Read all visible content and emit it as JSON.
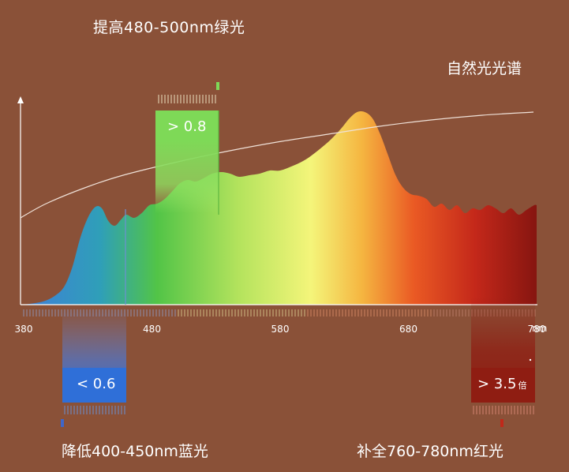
{
  "labels": {
    "top_title": "提高480-500nm绿光",
    "natural_spectrum": "自然光光谱",
    "blue_title": "降低400-450nm蓝光",
    "red_title": "补全760-780nm红光",
    "unit": "nm"
  },
  "callouts": {
    "green_value": "> 0.8",
    "blue_value": "< 0.6",
    "red_value": "> 3.5",
    "red_suffix": "倍"
  },
  "colors": {
    "background": "#8a5138",
    "green_box": "#7ed957",
    "blue_box": "#2f6fd8",
    "red_box": "#8f1d12"
  },
  "chart_data": {
    "type": "area",
    "xlabel": "nm",
    "ylabel": "",
    "xlim": [
      380,
      780
    ],
    "ticks": [
      "380",
      "480",
      "580",
      "680",
      "780"
    ],
    "series": [
      {
        "name": "",
        "x": [
          380,
          395,
          405,
          412,
          418,
          424,
          430,
          436,
          441,
          446,
          451,
          456,
          460,
          466,
          472,
          478,
          484,
          490,
          496,
          502,
          508,
          514,
          520,
          527,
          534,
          541,
          548,
          556,
          564,
          572,
          580,
          590,
          600,
          610,
          620,
          628,
          634,
          640,
          646,
          652,
          658,
          664,
          670,
          676,
          682,
          688,
          694,
          700,
          706,
          712,
          718,
          724,
          730,
          736,
          742,
          748,
          754,
          760,
          766,
          772,
          778,
          780
        ],
        "y": [
          0,
          0.02,
          0.06,
          0.12,
          0.24,
          0.42,
          0.55,
          0.62,
          0.61,
          0.53,
          0.5,
          0.54,
          0.57,
          0.55,
          0.58,
          0.63,
          0.64,
          0.67,
          0.72,
          0.77,
          0.79,
          0.78,
          0.8,
          0.83,
          0.84,
          0.83,
          0.81,
          0.82,
          0.83,
          0.85,
          0.85,
          0.88,
          0.92,
          0.98,
          1.05,
          1.12,
          1.18,
          1.22,
          1.22,
          1.18,
          1.08,
          0.95,
          0.82,
          0.74,
          0.7,
          0.69,
          0.67,
          0.62,
          0.64,
          0.6,
          0.63,
          0.58,
          0.61,
          0.6,
          0.63,
          0.61,
          0.58,
          0.61,
          0.57,
          0.6,
          0.63,
          0.63
        ]
      },
      {
        "name": "自然光光谱",
        "x": [
          380,
          400,
          430,
          460,
          500,
          540,
          580,
          620,
          660,
          700,
          740,
          780
        ],
        "y": [
          0.55,
          0.64,
          0.74,
          0.82,
          0.9,
          0.97,
          1.03,
          1.08,
          1.13,
          1.17,
          1.2,
          1.22
        ]
      }
    ],
    "highlights": [
      {
        "from": 480,
        "to": 500,
        "label": "> 0.8"
      },
      {
        "from": 400,
        "to": 450,
        "label": "< 0.6"
      },
      {
        "from": 760,
        "to": 780,
        "label": "> 3.5倍"
      }
    ],
    "grid": false,
    "legend": "none"
  }
}
